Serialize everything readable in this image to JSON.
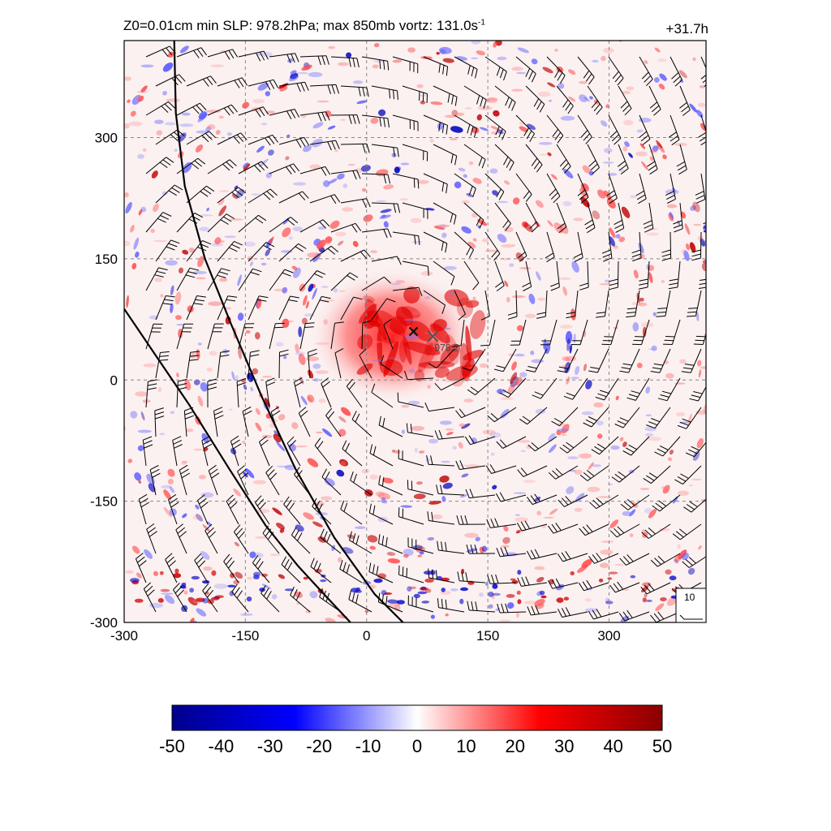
{
  "header": {
    "title_main": "Z0=0.01cm  min SLP: 978.2hPa; max 850mb vortz: 131.0s",
    "title_sup": "-1",
    "time_label": "+31.7h"
  },
  "chart_data": {
    "type": "heatmap",
    "field": "850mb relative vorticity with wind barbs",
    "xlim": [
      -300,
      420
    ],
    "ylim": [
      -300,
      420
    ],
    "x_ticks": [
      -300,
      -150,
      0,
      150,
      300
    ],
    "y_ticks": [
      -300,
      -150,
      0,
      150,
      300
    ],
    "x_tick_labels": [
      "-300",
      "-150",
      "0",
      "150",
      "300"
    ],
    "y_tick_labels": [
      "-300",
      "-150",
      "0",
      "150",
      "300"
    ],
    "grid": true,
    "grid_style": "dashed",
    "colorbar": {
      "min": -50,
      "max": 50,
      "ticks": [
        -50,
        -40,
        -30,
        -20,
        -10,
        0,
        10,
        20,
        30,
        40,
        50
      ],
      "tick_labels": [
        "-50",
        "-40",
        "-30",
        "-20",
        "-10",
        "0",
        "10",
        "20",
        "30",
        "40",
        "50"
      ],
      "colors": [
        "#00008b",
        "#0000ff",
        "#ffffff",
        "#ff0000",
        "#8b0000"
      ]
    },
    "storm_center": {
      "x": 58,
      "y": 60
    },
    "min_slp_marker": {
      "x": 82,
      "y": 54,
      "label": "978.2"
    },
    "coastlines": [
      {
        "name": "coast-upper",
        "points": [
          [
            -238,
            420
          ],
          [
            -236,
            330
          ],
          [
            -225,
            240
          ],
          [
            -200,
            150
          ],
          [
            -168,
            70
          ],
          [
            -130,
            -20
          ],
          [
            -88,
            -110
          ],
          [
            -40,
            -195
          ],
          [
            10,
            -265
          ],
          [
            45,
            -300
          ]
        ]
      },
      {
        "name": "coast-lower",
        "points": [
          [
            -300,
            88
          ],
          [
            -262,
            32
          ],
          [
            -220,
            -30
          ],
          [
            -170,
            -110
          ],
          [
            -125,
            -180
          ],
          [
            -85,
            -230
          ],
          [
            -50,
            -268
          ],
          [
            -20,
            -300
          ]
        ]
      }
    ],
    "barb_reference": {
      "label": "10"
    }
  }
}
